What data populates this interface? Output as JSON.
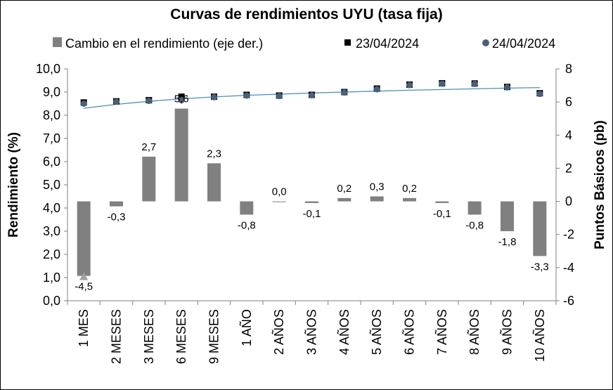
{
  "chart_data": {
    "type": "bar",
    "title": "Curvas de rendimientos UYU (tasa fija)",
    "categories": [
      "1 MES",
      "2 MESES",
      "3 MESES",
      "6 MESES",
      "9 MESES",
      "1 AÑO",
      "2 AÑOS",
      "3 AÑOS",
      "4 AÑOS",
      "5 AÑOS",
      "6 AÑOS",
      "7 AÑOS",
      "8 AÑOS",
      "9 AÑOS",
      "10 AÑOS"
    ],
    "ylabel_left": "Rendimiento (%)",
    "ylabel_right": "Puntos Básicos (pb)",
    "ylim_left": [
      0,
      10
    ],
    "ylim_right": [
      -6,
      8
    ],
    "yticks_left": [
      "0,0",
      "1,0",
      "2,0",
      "3,0",
      "4,0",
      "5,0",
      "6,0",
      "7,0",
      "8,0",
      "9,0",
      "10,0"
    ],
    "yticks_right": [
      "-6",
      "-4",
      "-2",
      "0",
      "2",
      "4",
      "6",
      "8"
    ],
    "grid": false,
    "legend_position": "top",
    "series": [
      {
        "name": "Cambio en el rendimiento (eje der.)",
        "axis": "right",
        "kind": "bar",
        "color": "#808080",
        "values": [
          -4.5,
          -0.3,
          2.7,
          5.6,
          2.3,
          -0.8,
          0.0,
          -0.1,
          0.2,
          0.3,
          0.2,
          -0.1,
          -0.8,
          -1.8,
          -3.3
        ],
        "labels": [
          "-4,5",
          "-0,3",
          "2,7",
          "5,6",
          "2,3",
          "-0,8",
          "0,0",
          "-0,1",
          "0,2",
          "0,3",
          "0,2",
          "-0,1",
          "-0,8",
          "-1,8",
          "-3,3"
        ]
      },
      {
        "name": "23/04/2024",
        "axis": "left",
        "kind": "marker",
        "marker": "square",
        "color": "#000000",
        "values": [
          8.55,
          8.6,
          8.65,
          8.8,
          8.8,
          8.88,
          8.85,
          8.88,
          9.0,
          9.15,
          9.32,
          9.38,
          9.37,
          9.22,
          8.95
        ]
      },
      {
        "name": "24/04/2024",
        "axis": "left",
        "kind": "marker",
        "marker": "circle",
        "color": "#4a5f7a",
        "values": [
          8.5,
          8.58,
          8.62,
          8.65,
          8.78,
          8.85,
          8.83,
          8.86,
          8.98,
          9.12,
          9.3,
          9.36,
          9.35,
          9.2,
          8.92
        ]
      }
    ],
    "trendline": {
      "color": "#4a90b8",
      "values": [
        8.3,
        8.47,
        8.6,
        8.71,
        8.79,
        8.86,
        8.91,
        8.96,
        9.0,
        9.04,
        9.08,
        9.11,
        9.14,
        9.17,
        9.19
      ]
    },
    "annotation_marker": {
      "category_index": 0,
      "value_right": -4.5,
      "color": "#a0a0a0"
    }
  }
}
